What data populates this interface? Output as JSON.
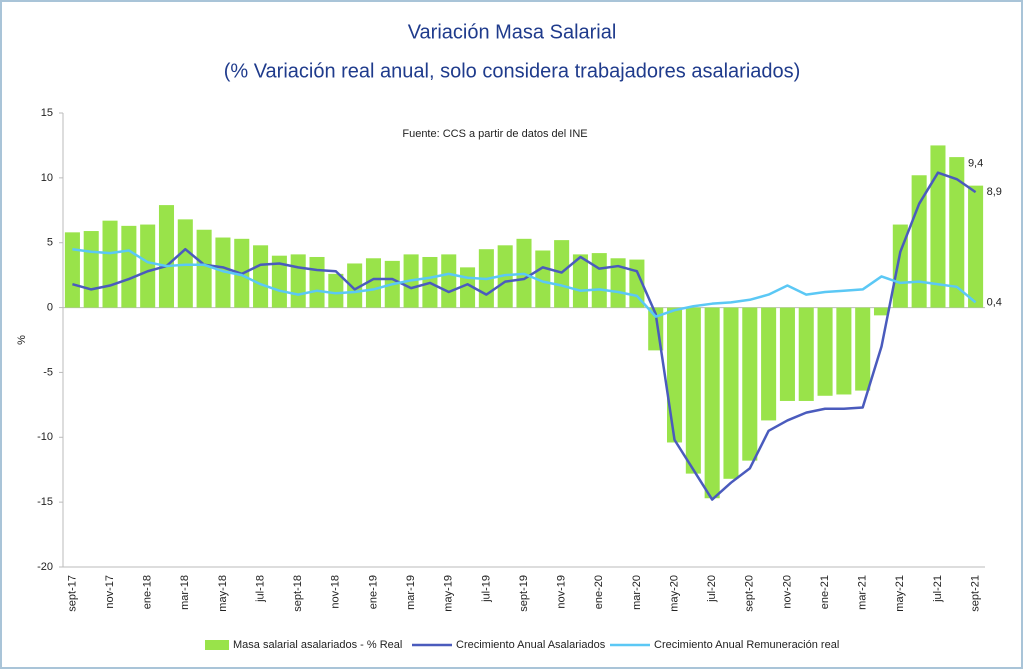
{
  "chart_data": {
    "type": "bar-line",
    "title": "Variación Masa Salarial",
    "subtitle": "(% Variación real anual, solo considera trabajadores asalariados)",
    "source": "Fuente: CCS a partir de datos del INE",
    "y_label": "%",
    "categories": [
      "sept-17",
      null,
      "nov-17",
      null,
      "ene-18",
      null,
      "mar-18",
      null,
      "may-18",
      null,
      "jul-18",
      null,
      "sept-18",
      null,
      "nov-18",
      null,
      "ene-19",
      null,
      "mar-19",
      null,
      "may-19",
      null,
      "jul-19",
      null,
      "sept-19",
      null,
      "nov-19",
      null,
      "ene-20",
      null,
      "mar-20",
      null,
      "may-20",
      null,
      "jul-20",
      null,
      "sept-20",
      null,
      "nov-20",
      null,
      "ene-21",
      null,
      "mar-21",
      null,
      "may-21",
      null,
      "jul-21",
      null,
      "sept-21"
    ],
    "series": [
      {
        "name": "Masa salarial asalariados - % Real",
        "kind": "bar",
        "color": "#99e34a",
        "values": [
          5.8,
          5.9,
          6.7,
          6.3,
          6.4,
          7.9,
          6.8,
          6.0,
          5.4,
          5.3,
          4.8,
          4.0,
          4.1,
          3.9,
          2.6,
          3.4,
          3.8,
          3.6,
          4.1,
          3.9,
          4.1,
          3.1,
          4.5,
          4.8,
          5.3,
          4.4,
          5.2,
          4.1,
          4.2,
          3.8,
          3.7,
          -3.3,
          -10.4,
          -12.8,
          -14.7,
          -13.2,
          -11.8,
          -8.7,
          -7.2,
          -7.2,
          -6.8,
          -6.7,
          -6.4,
          -0.6,
          6.4,
          10.2,
          12.5,
          11.6,
          9.4
        ],
        "value_labels": [
          null,
          null,
          null,
          null,
          null,
          null,
          null,
          null,
          null,
          null,
          null,
          null,
          null,
          null,
          null,
          null,
          null,
          null,
          null,
          null,
          null,
          null,
          null,
          null,
          null,
          null,
          null,
          null,
          null,
          null,
          null,
          null,
          null,
          null,
          null,
          null,
          null,
          null,
          null,
          null,
          null,
          null,
          null,
          null,
          null,
          null,
          null,
          null,
          "9,4"
        ]
      },
      {
        "name": "Crecimiento Anual Asalariados",
        "kind": "line",
        "color": "#4a5bbd",
        "values": [
          1.8,
          1.4,
          1.7,
          2.2,
          2.8,
          3.2,
          4.5,
          3.3,
          3.1,
          2.6,
          3.3,
          3.4,
          3.1,
          2.9,
          2.8,
          1.4,
          2.2,
          2.2,
          1.5,
          1.9,
          1.2,
          1.8,
          1.0,
          2.0,
          2.2,
          3.1,
          2.7,
          3.9,
          3.0,
          3.2,
          2.8,
          -0.5,
          -10.2,
          -12.5,
          -14.8,
          -13.5,
          -12.4,
          -9.5,
          -8.7,
          -8.1,
          -7.8,
          -7.8,
          -7.7,
          -3.0,
          4.3,
          8.0,
          10.4,
          9.9,
          8.9
        ],
        "value_labels": [
          null,
          null,
          null,
          null,
          null,
          null,
          null,
          null,
          null,
          null,
          null,
          null,
          null,
          null,
          null,
          null,
          null,
          null,
          null,
          null,
          null,
          null,
          null,
          null,
          null,
          null,
          null,
          null,
          null,
          null,
          null,
          null,
          null,
          null,
          null,
          null,
          null,
          null,
          null,
          null,
          null,
          null,
          null,
          null,
          null,
          null,
          null,
          null,
          "8,9"
        ]
      },
      {
        "name": "Crecimiento Anual Remuneración real",
        "kind": "line",
        "color": "#5bc8f5",
        "values": [
          4.5,
          4.3,
          4.2,
          4.4,
          3.5,
          3.2,
          3.3,
          3.3,
          2.8,
          2.5,
          1.8,
          1.3,
          1.0,
          1.3,
          1.1,
          1.2,
          1.4,
          1.8,
          2.1,
          2.3,
          2.6,
          2.3,
          2.2,
          2.5,
          2.6,
          2.0,
          1.7,
          1.3,
          1.4,
          1.2,
          0.9,
          -0.7,
          -0.2,
          0.1,
          0.3,
          0.4,
          0.6,
          1.0,
          1.7,
          1.0,
          1.2,
          1.3,
          1.4,
          2.4,
          1.9,
          2.0,
          1.8,
          1.6,
          0.4
        ],
        "value_labels": [
          null,
          null,
          null,
          null,
          null,
          null,
          null,
          null,
          null,
          null,
          null,
          null,
          null,
          null,
          null,
          null,
          null,
          null,
          null,
          null,
          null,
          null,
          null,
          null,
          null,
          null,
          null,
          null,
          null,
          null,
          null,
          null,
          null,
          null,
          null,
          null,
          null,
          null,
          null,
          null,
          null,
          null,
          null,
          null,
          null,
          null,
          null,
          null,
          "0,4"
        ]
      }
    ],
    "ylim": [
      -20,
      15
    ],
    "yticks": [
      15,
      10,
      5,
      0,
      -5,
      -10,
      -15,
      -20
    ],
    "grid": false
  }
}
